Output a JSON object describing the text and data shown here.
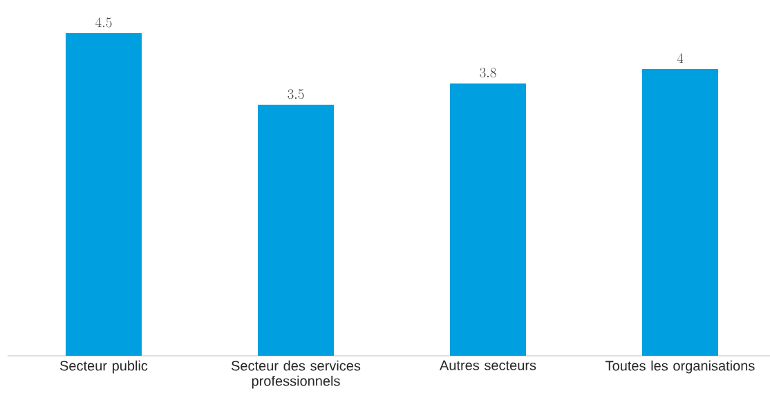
{
  "chart_data": {
    "type": "bar",
    "categories": [
      "Secteur public",
      "Secteur des services professionnels",
      "Autres secteurs",
      "Toutes les organisations"
    ],
    "values": [
      4.5,
      3.5,
      3.8,
      4
    ],
    "color": "#009fdf",
    "data_labels": true
  }
}
